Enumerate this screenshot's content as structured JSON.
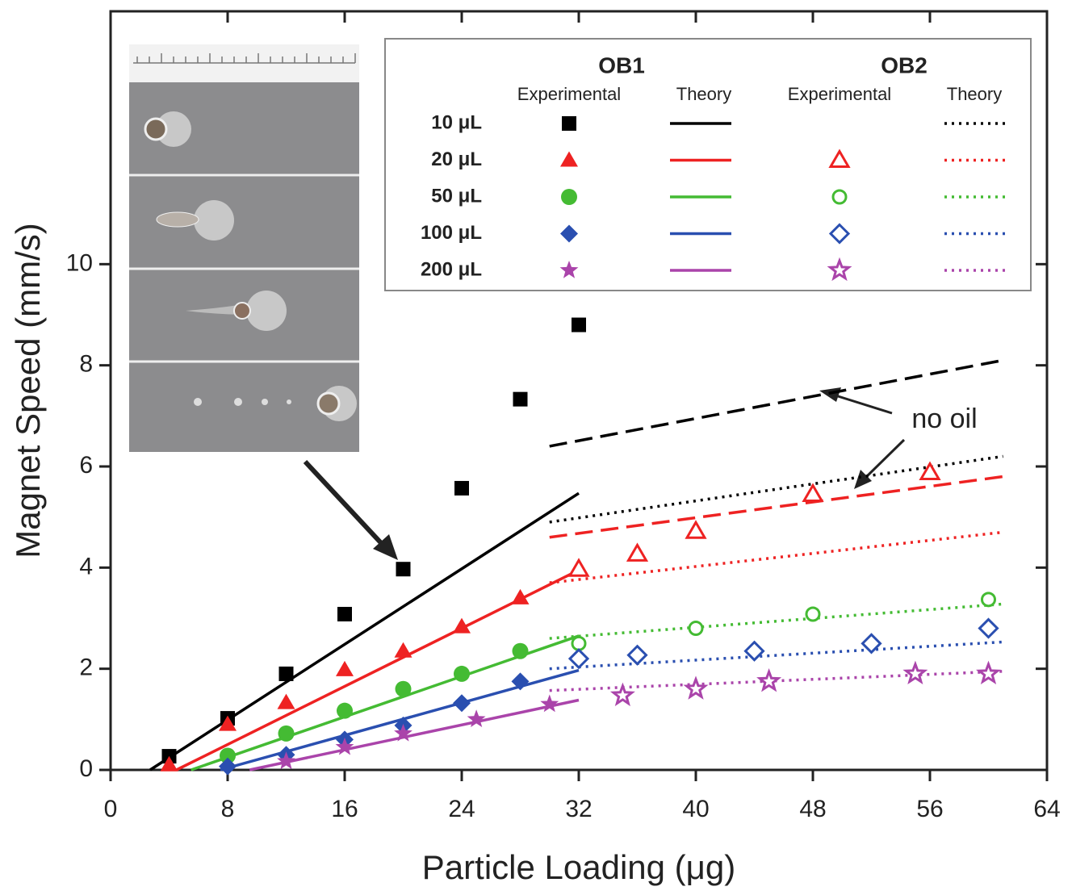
{
  "chart_data": {
    "type": "scatter-line",
    "xlabel": "Particle Loading (μg)",
    "ylabel": "Magnet Speed (mm/s)",
    "xlim": [
      0,
      64
    ],
    "xticks": [
      0,
      8,
      16,
      24,
      32,
      40,
      48,
      56,
      64
    ],
    "ylim": [
      0,
      15
    ],
    "yticks": [
      0,
      2,
      4,
      6,
      8,
      10
    ],
    "legend": {
      "groups": [
        "OB1",
        "OB2"
      ],
      "columns": [
        "Experimental",
        "Theory",
        "Experimental",
        "Theory"
      ]
    },
    "annotation": "no oil",
    "series": [
      {
        "name": "10 μL",
        "color": "#000000",
        "marker": "square",
        "ob1_experimental": {
          "x": [
            4,
            8,
            12,
            16,
            20,
            24,
            28,
            32
          ],
          "values": [
            0.27,
            1.02,
            1.9,
            3.08,
            3.97,
            5.57,
            7.33,
            8.8
          ]
        },
        "ob1_theory": {
          "x": [
            2.7,
            32
          ],
          "values": [
            0,
            5.47
          ]
        },
        "ob2_theory": {
          "x": [
            30,
            61
          ],
          "values": [
            4.9,
            6.2
          ]
        },
        "no_oil": {
          "x": [
            30,
            61
          ],
          "values": [
            6.4,
            8.1
          ]
        }
      },
      {
        "name": "20 μL",
        "color": "#ee2222",
        "marker": "triangle",
        "ob1_experimental": {
          "x": [
            4,
            8,
            12,
            16,
            20,
            24,
            28
          ],
          "values": [
            0.1,
            0.9,
            1.33,
            1.98,
            2.35,
            2.83,
            3.4
          ]
        },
        "ob1_theory": {
          "x": [
            4.5,
            32
          ],
          "values": [
            0,
            3.95
          ]
        },
        "ob2_experimental": {
          "x": [
            32,
            36,
            40,
            48,
            56
          ],
          "values": [
            3.97,
            4.27,
            4.72,
            5.45,
            5.88
          ]
        },
        "ob2_theory": {
          "x": [
            30,
            61
          ],
          "values": [
            3.7,
            4.7
          ]
        },
        "no_oil": {
          "x": [
            30,
            61
          ],
          "values": [
            4.6,
            5.8
          ]
        }
      },
      {
        "name": "50 μL",
        "color": "#44bb33",
        "marker": "circle",
        "ob1_experimental": {
          "x": [
            8,
            12,
            16,
            20,
            24,
            28
          ],
          "values": [
            0.28,
            0.72,
            1.17,
            1.6,
            1.9,
            2.35
          ]
        },
        "ob1_theory": {
          "x": [
            5.5,
            32
          ],
          "values": [
            0,
            2.65
          ]
        },
        "ob2_experimental": {
          "x": [
            32,
            40,
            48,
            60
          ],
          "values": [
            2.5,
            2.8,
            3.08,
            3.37
          ]
        },
        "ob2_theory": {
          "x": [
            30,
            61
          ],
          "values": [
            2.6,
            3.28
          ]
        }
      },
      {
        "name": "100 μL",
        "color": "#2a4fb0",
        "marker": "diamond",
        "ob1_experimental": {
          "x": [
            8,
            12,
            16,
            20,
            24,
            28
          ],
          "values": [
            0.07,
            0.3,
            0.6,
            0.88,
            1.32,
            1.75
          ]
        },
        "ob1_theory": {
          "x": [
            7.5,
            32
          ],
          "values": [
            0,
            1.97
          ]
        },
        "ob2_experimental": {
          "x": [
            32,
            36,
            44,
            52,
            60
          ],
          "values": [
            2.2,
            2.27,
            2.35,
            2.5,
            2.8
          ]
        },
        "ob2_theory": {
          "x": [
            30,
            61
          ],
          "values": [
            2.0,
            2.53
          ]
        }
      },
      {
        "name": "200 μL",
        "color": "#aa44aa",
        "marker": "star",
        "ob1_experimental": {
          "x": [
            12,
            16,
            20,
            25,
            30
          ],
          "values": [
            0.17,
            0.45,
            0.72,
            1.0,
            1.3
          ]
        },
        "ob1_theory": {
          "x": [
            9.5,
            32
          ],
          "values": [
            0,
            1.38
          ]
        },
        "ob2_experimental": {
          "x": [
            35,
            40,
            45,
            55,
            60
          ],
          "values": [
            1.47,
            1.6,
            1.75,
            1.9,
            1.9
          ]
        },
        "ob2_theory": {
          "x": [
            30,
            61
          ],
          "values": [
            1.57,
            1.95
          ]
        }
      }
    ]
  }
}
